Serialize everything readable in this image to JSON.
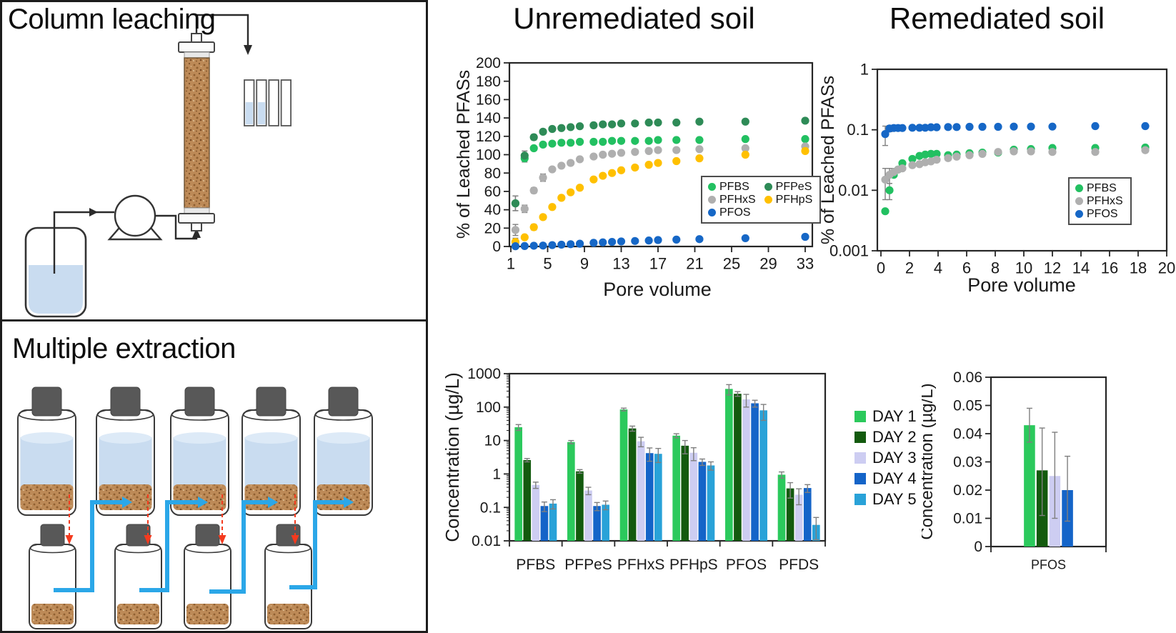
{
  "left_panel": {
    "sections": [
      {
        "title": "Column leaching"
      },
      {
        "title": "Multiple extraction"
      }
    ]
  },
  "colors": {
    "liquid": "#C9DCF0",
    "liquid_surface": "#DDEAF7",
    "soil_base": "#BD8A57",
    "soil_dark": "#8F5F30",
    "soil_darker": "#7A4E26",
    "soil_light": "#D9B98C",
    "cap_gray": "#585858",
    "outline": "#3A3A3A",
    "arrow_blue": "#2BA7E8",
    "arrow_red": "#F43A1E",
    "axis": "#262626",
    "error_bar": "#7F7F7F"
  },
  "chart_data": [
    {
      "id": "unremediated",
      "type": "scatter",
      "title": "Unremediated soil",
      "xlabel": "Pore volume",
      "ylabel": "% of Leached PFASs",
      "yscale": "linear",
      "xlim": [
        1,
        33
      ],
      "ylim": [
        0,
        200
      ],
      "xticks": [
        1,
        5,
        9,
        13,
        17,
        21,
        25,
        29,
        33
      ],
      "yticks": [
        0,
        20,
        40,
        60,
        80,
        100,
        120,
        140,
        160,
        180,
        200
      ],
      "legend_position": "inside-right",
      "x": [
        1.5,
        2.5,
        3.5,
        4.5,
        5.5,
        6.5,
        7.5,
        8.5,
        10,
        11,
        12,
        13,
        14.5,
        16,
        17,
        19,
        21.5,
        26.5,
        33
      ],
      "series": [
        {
          "name": "PFBS",
          "color": "#22C061",
          "values": [
            47,
            96,
            107,
            111,
            112,
            113,
            113,
            114,
            114,
            114,
            115,
            115,
            115,
            115,
            116,
            116,
            116,
            117,
            117
          ],
          "err": [
            8,
            4,
            2,
            0,
            0,
            0,
            0,
            0,
            0,
            0,
            0,
            0,
            0,
            0,
            0,
            0,
            0,
            0,
            0
          ]
        },
        {
          "name": "PFPeS",
          "color": "#2E8B57",
          "values": [
            47,
            99,
            119,
            125,
            128,
            129,
            130,
            131,
            132,
            133,
            133,
            134,
            134,
            135,
            135,
            135,
            136,
            136,
            137
          ],
          "err": [
            8,
            5,
            3,
            0,
            0,
            0,
            0,
            0,
            0,
            0,
            0,
            0,
            0,
            0,
            0,
            0,
            0,
            0,
            0
          ]
        },
        {
          "name": "PFHxS",
          "color": "#AFAFAF",
          "values": [
            18,
            41,
            61,
            75,
            84,
            88,
            91,
            95,
            98,
            100,
            101,
            102,
            103,
            104,
            105,
            105,
            106,
            107,
            109
          ],
          "err": [
            6,
            4,
            3,
            4,
            2,
            2,
            0,
            0,
            0,
            0,
            0,
            0,
            0,
            0,
            0,
            0,
            0,
            0,
            0
          ]
        },
        {
          "name": "PFHpS",
          "color": "#FFC000",
          "values": [
            5,
            10,
            21,
            32,
            43,
            53,
            59,
            64,
            73,
            77,
            80,
            83,
            86,
            89,
            91,
            93,
            96,
            100,
            104
          ],
          "err": [
            4,
            2,
            3,
            2,
            2,
            0,
            0,
            0,
            0,
            0,
            0,
            0,
            0,
            0,
            0,
            0,
            0,
            0,
            0
          ]
        },
        {
          "name": "PFOS",
          "color": "#1667C6",
          "values": [
            0.3,
            0.5,
            0.8,
            1,
            1.5,
            2,
            2.5,
            3,
            4,
            4.5,
            5,
            5.5,
            6,
            6.5,
            7,
            7.5,
            8,
            9,
            10.5
          ],
          "err": [
            0,
            0,
            0,
            0,
            0,
            0,
            0,
            0,
            0,
            0,
            0,
            0,
            0,
            0,
            0,
            0,
            0,
            0,
            0
          ]
        }
      ]
    },
    {
      "id": "remediated",
      "type": "scatter",
      "title": "Remediated soil",
      "xlabel": "Pore volume",
      "ylabel": "% of Leached PFASs",
      "yscale": "log",
      "xlim": [
        0,
        20
      ],
      "ylim": [
        0.001,
        1
      ],
      "xticks": [
        0,
        2,
        4,
        6,
        8,
        10,
        12,
        14,
        16,
        18,
        20
      ],
      "yticks": [
        0.001,
        0.01,
        0.1,
        1
      ],
      "legend_position": "inside-right",
      "x": [
        0.3,
        0.6,
        0.9,
        1.2,
        1.5,
        2.2,
        2.7,
        3.1,
        3.5,
        3.9,
        4.7,
        5.3,
        6.2,
        7.1,
        8.2,
        9.3,
        10.5,
        12,
        15,
        18.5
      ],
      "series": [
        {
          "name": "PFBS",
          "color": "#22C061",
          "values": [
            0.0045,
            0.01,
            0.018,
            0.022,
            0.028,
            0.033,
            0.037,
            0.039,
            0.04,
            0.04,
            0.038,
            0.039,
            0.041,
            0.042,
            0.042,
            0.047,
            0.048,
            0.05,
            0.05,
            0.051
          ],
          "err": [
            0,
            0.003,
            0,
            0,
            0,
            0,
            0,
            0,
            0,
            0,
            0,
            0,
            0,
            0,
            0,
            0,
            0,
            0,
            0,
            0
          ]
        },
        {
          "name": "PFHxS",
          "color": "#AFAFAF",
          "values": [
            0.015,
            0.018,
            0.02,
            0.022,
            0.023,
            0.026,
            0.027,
            0.029,
            0.03,
            0.032,
            0.034,
            0.036,
            0.038,
            0.04,
            0.043,
            0.044,
            0.044,
            0.043,
            0.043,
            0.046
          ],
          "err": [
            0.008,
            0.005,
            0.003,
            0.002,
            0,
            0,
            0,
            0,
            0,
            0,
            0,
            0,
            0,
            0,
            0,
            0,
            0,
            0,
            0,
            0
          ]
        },
        {
          "name": "PFOS",
          "color": "#1667C6",
          "values": [
            0.085,
            0.105,
            0.107,
            0.107,
            0.107,
            0.108,
            0.108,
            0.108,
            0.11,
            0.11,
            0.111,
            0.111,
            0.112,
            0.112,
            0.112,
            0.113,
            0.113,
            0.113,
            0.115,
            0.115
          ],
          "err": [
            0.03,
            0.012,
            0,
            0,
            0,
            0,
            0,
            0,
            0,
            0,
            0,
            0,
            0,
            0,
            0,
            0,
            0,
            0,
            0,
            0
          ]
        }
      ]
    },
    {
      "id": "extraction-bars",
      "type": "bar",
      "title": "",
      "xlabel": "",
      "ylabel": "Concentration (µg/L)",
      "yscale": "log",
      "ylim": [
        0.01,
        1000
      ],
      "yticks": [
        0.01,
        0.1,
        1,
        10,
        100,
        1000
      ],
      "categories": [
        "PFBS",
        "PFPeS",
        "PFHxS",
        "PFHpS",
        "PFOS",
        "PFDS"
      ],
      "series": [
        {
          "name": "DAY 1",
          "color": "#2BC95C",
          "values": [
            25,
            9,
            85,
            14,
            350,
            0.95
          ],
          "err": [
            5,
            1,
            8,
            2,
            120,
            0.2
          ]
        },
        {
          "name": "DAY 2",
          "color": "#135A0E",
          "values": [
            2.6,
            1.2,
            23,
            7,
            250,
            0.37
          ],
          "err": [
            0.3,
            0.15,
            4,
            3,
            40,
            0.18
          ]
        },
        {
          "name": "DAY 3",
          "color": "#CDCDF2",
          "values": [
            0.47,
            0.32,
            9.5,
            4.3,
            170,
            0.24
          ],
          "err": [
            0.1,
            0.08,
            3,
            1.8,
            70,
            0.12
          ]
        },
        {
          "name": "DAY 4",
          "color": "#1464C8",
          "values": [
            0.11,
            0.11,
            4.2,
            2.3,
            130,
            0.38
          ],
          "err": [
            0.035,
            0.03,
            1.8,
            0.5,
            30,
            0.1
          ]
        },
        {
          "name": "DAY 5",
          "color": "#29A2D8",
          "values": [
            0.13,
            0.12,
            4.0,
            1.8,
            80,
            0.03
          ],
          "err": [
            0.04,
            0.035,
            1.8,
            0.5,
            40,
            0.02
          ]
        }
      ]
    },
    {
      "id": "pfos-bars",
      "type": "bar",
      "title": "",
      "xlabel": "",
      "ylabel": "Concentration (µg/L)",
      "yscale": "linear",
      "ylim": [
        0,
        0.06
      ],
      "yticks": [
        0,
        0.01,
        0.02,
        0.03,
        0.04,
        0.05,
        0.06
      ],
      "categories": [
        "PFOS"
      ],
      "series": [
        {
          "name": "DAY 1",
          "color": "#2BC95C",
          "values": [
            0.043
          ],
          "err_lo": [
            0.006
          ],
          "err_hi": [
            0.006
          ]
        },
        {
          "name": "DAY 2",
          "color": "#135A0E",
          "values": [
            0.027
          ],
          "err_lo": [
            0.016
          ],
          "err_hi": [
            0.015
          ]
        },
        {
          "name": "DAY 3",
          "color": "#CDCDF2",
          "values": [
            0.025
          ],
          "err_lo": [
            0.015
          ],
          "err_hi": [
            0.0155
          ]
        },
        {
          "name": "DAY 4",
          "color": "#1464C8",
          "values": [
            0.02
          ],
          "err_lo": [
            0.011
          ],
          "err_hi": [
            0.012
          ]
        }
      ]
    }
  ]
}
